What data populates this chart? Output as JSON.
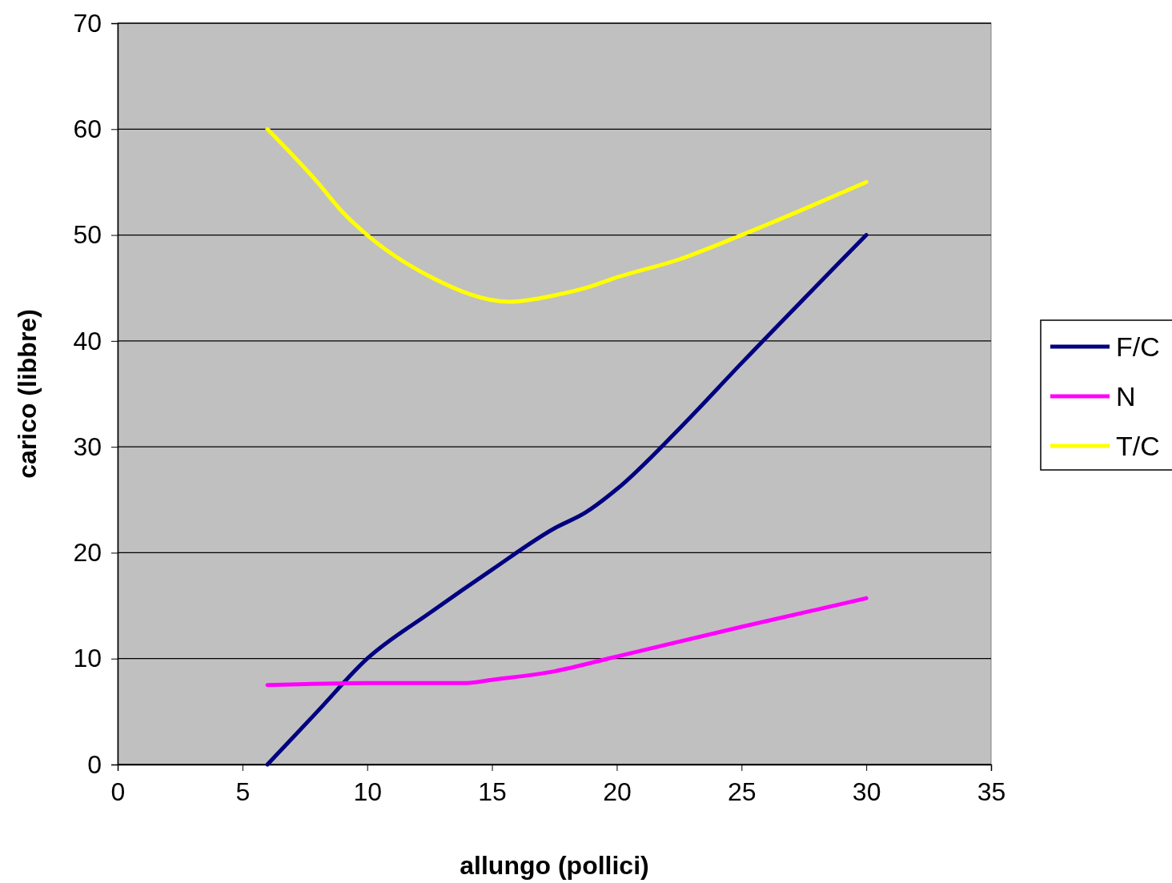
{
  "chart_data": {
    "type": "line",
    "xlabel": "allungo (pollici)",
    "ylabel": "carico (libbre)",
    "xlim": [
      0,
      35
    ],
    "xticks": [
      0,
      5,
      10,
      15,
      20,
      25,
      30,
      35
    ],
    "ylim": [
      0,
      70
    ],
    "yticks": [
      0,
      10,
      20,
      30,
      40,
      50,
      60,
      70
    ],
    "grid": "y",
    "legend": "right",
    "marker": "none",
    "line_style": "solid",
    "series": [
      {
        "name": "F/C",
        "color": "#000080",
        "x": [
          6,
          8,
          10,
          12.5,
          15,
          17.5,
          18.75,
          20,
          22.5,
          25,
          30
        ],
        "values": [
          0,
          5,
          10,
          14.3,
          18.4,
          22.3,
          23.8,
          26,
          31.7,
          37.9,
          50
        ]
      },
      {
        "name": "N",
        "color": "#ff00ff",
        "x": [
          6,
          10,
          14,
          15,
          17.5,
          20,
          25,
          30
        ],
        "values": [
          7.5,
          7.7,
          7.7,
          8,
          8.8,
          10.2,
          13,
          15.7
        ]
      },
      {
        "name": "T/C",
        "color": "#ffff00",
        "x": [
          6,
          8,
          9,
          10,
          12.5,
          15.7,
          17.5,
          18.75,
          20,
          22.5,
          25,
          30
        ],
        "values": [
          60,
          55,
          52.2,
          50,
          46.1,
          43.7,
          44.3,
          45,
          46,
          47.7,
          50,
          55
        ]
      }
    ]
  }
}
